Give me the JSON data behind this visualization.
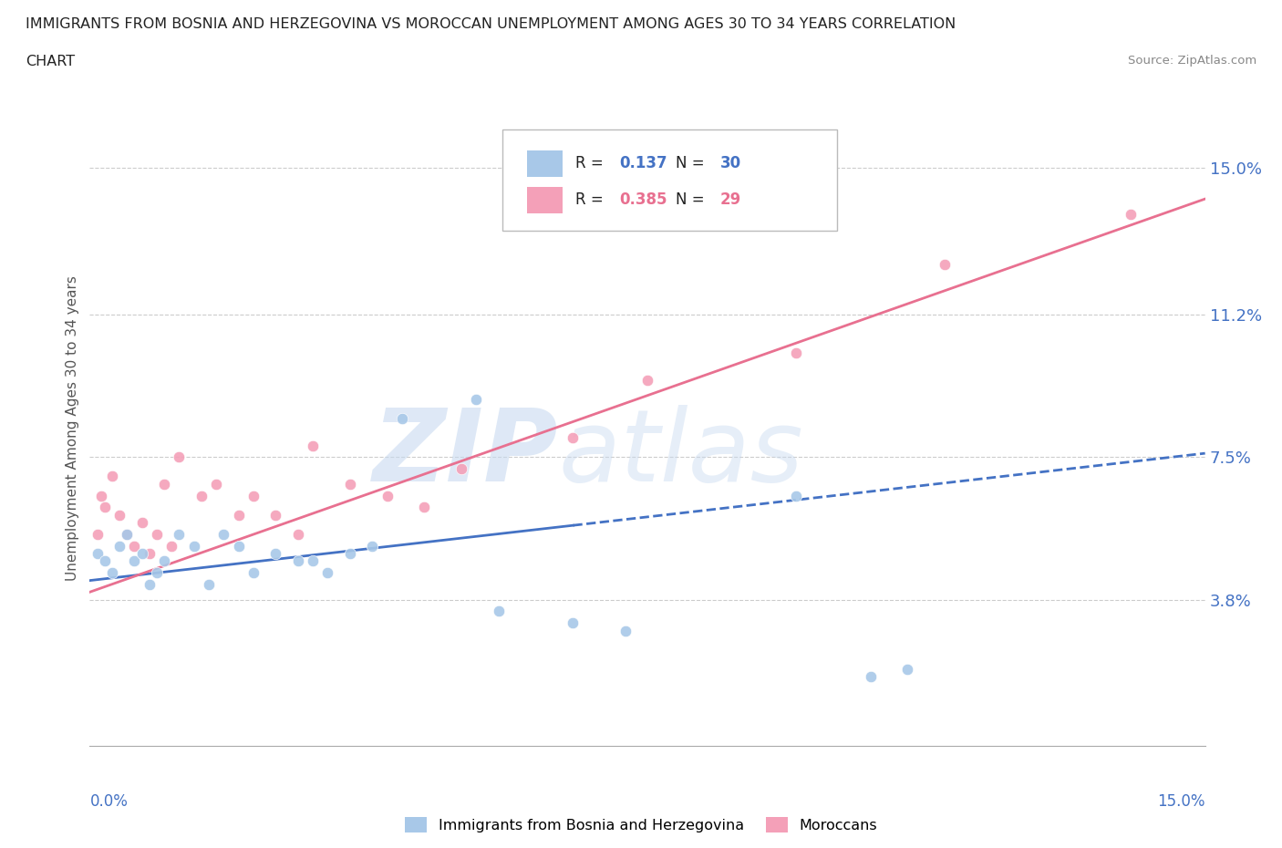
{
  "title_line1": "IMMIGRANTS FROM BOSNIA AND HERZEGOVINA VS MOROCCAN UNEMPLOYMENT AMONG AGES 30 TO 34 YEARS CORRELATION",
  "title_line2": "CHART",
  "source_text": "Source: ZipAtlas.com",
  "ylabel": "Unemployment Among Ages 30 to 34 years",
  "ytick_labels": [
    "3.8%",
    "7.5%",
    "11.2%",
    "15.0%"
  ],
  "ytick_values": [
    3.8,
    7.5,
    11.2,
    15.0
  ],
  "xlim": [
    0.0,
    15.0
  ],
  "ylim": [
    0.0,
    16.5
  ],
  "bosnia_R": "0.137",
  "bosnia_N": "30",
  "morocco_R": "0.385",
  "morocco_N": "29",
  "bosnia_color": "#a8c8e8",
  "morocco_color": "#f4a0b8",
  "bosnia_line_color": "#4472c4",
  "morocco_line_color": "#e87090",
  "bosnia_x": [
    0.1,
    0.2,
    0.3,
    0.4,
    0.5,
    0.6,
    0.7,
    0.8,
    0.9,
    1.0,
    1.2,
    1.4,
    1.6,
    1.8,
    2.0,
    2.2,
    2.5,
    2.8,
    3.0,
    3.2,
    3.5,
    3.8,
    4.2,
    5.2,
    5.5,
    6.5,
    7.2,
    9.5,
    10.5,
    11.0
  ],
  "bosnia_y": [
    5.0,
    4.8,
    4.5,
    5.2,
    5.5,
    4.8,
    5.0,
    4.2,
    4.5,
    4.8,
    5.5,
    5.2,
    4.2,
    5.5,
    5.2,
    4.5,
    5.0,
    4.8,
    4.8,
    4.5,
    5.0,
    5.2,
    8.5,
    9.0,
    3.5,
    3.2,
    3.0,
    6.5,
    1.8,
    2.0
  ],
  "morocco_x": [
    0.1,
    0.15,
    0.2,
    0.3,
    0.4,
    0.5,
    0.6,
    0.7,
    0.8,
    0.9,
    1.0,
    1.1,
    1.2,
    1.5,
    1.7,
    2.0,
    2.2,
    2.5,
    2.8,
    3.0,
    3.5,
    4.0,
    4.5,
    5.0,
    6.5,
    7.5,
    9.5,
    11.5,
    14.0
  ],
  "morocco_y": [
    5.5,
    6.5,
    6.2,
    7.0,
    6.0,
    5.5,
    5.2,
    5.8,
    5.0,
    5.5,
    6.8,
    5.2,
    7.5,
    6.5,
    6.8,
    6.0,
    6.5,
    6.0,
    5.5,
    7.8,
    6.8,
    6.5,
    6.2,
    7.2,
    8.0,
    9.5,
    10.2,
    12.5,
    13.8
  ],
  "watermark_zip_color": "#c8daf0",
  "watermark_atlas_color": "#c8daf0"
}
